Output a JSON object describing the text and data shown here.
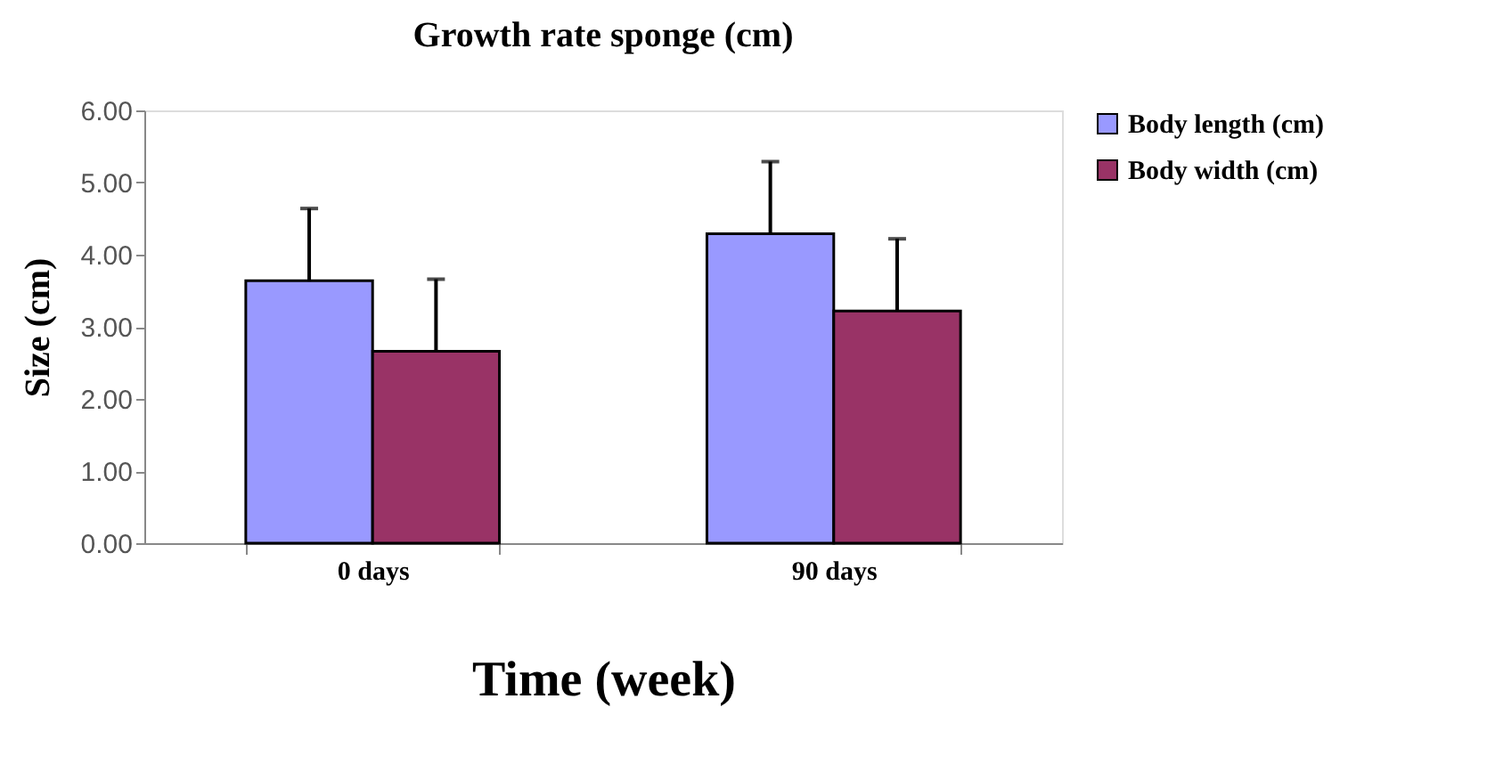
{
  "chart_data": {
    "type": "bar",
    "title": "Growth rate sponge (cm)",
    "xlabel": "Time (week)",
    "ylabel": "Size (cm)",
    "categories": [
      "0 days",
      "90 days"
    ],
    "series": [
      {
        "name": "Body length (cm)",
        "color": "#9999ff",
        "values": [
          3.64,
          4.29
        ],
        "errors": [
          1.0,
          1.0
        ]
      },
      {
        "name": "Body width (cm)",
        "color": "#993366",
        "values": [
          2.66,
          3.22
        ],
        "errors": [
          1.0,
          1.0
        ]
      }
    ],
    "ylim": [
      0,
      6
    ],
    "yticks": [
      {
        "value": 0,
        "label": "0.00"
      },
      {
        "value": 1,
        "label": "1.00"
      },
      {
        "value": 2,
        "label": "2.00"
      },
      {
        "value": 3,
        "label": "3.00"
      },
      {
        "value": 4,
        "label": "4.00"
      },
      {
        "value": 5,
        "label": "5.00"
      },
      {
        "value": 6,
        "label": "6.00"
      }
    ],
    "grid": false,
    "legend": "right"
  }
}
